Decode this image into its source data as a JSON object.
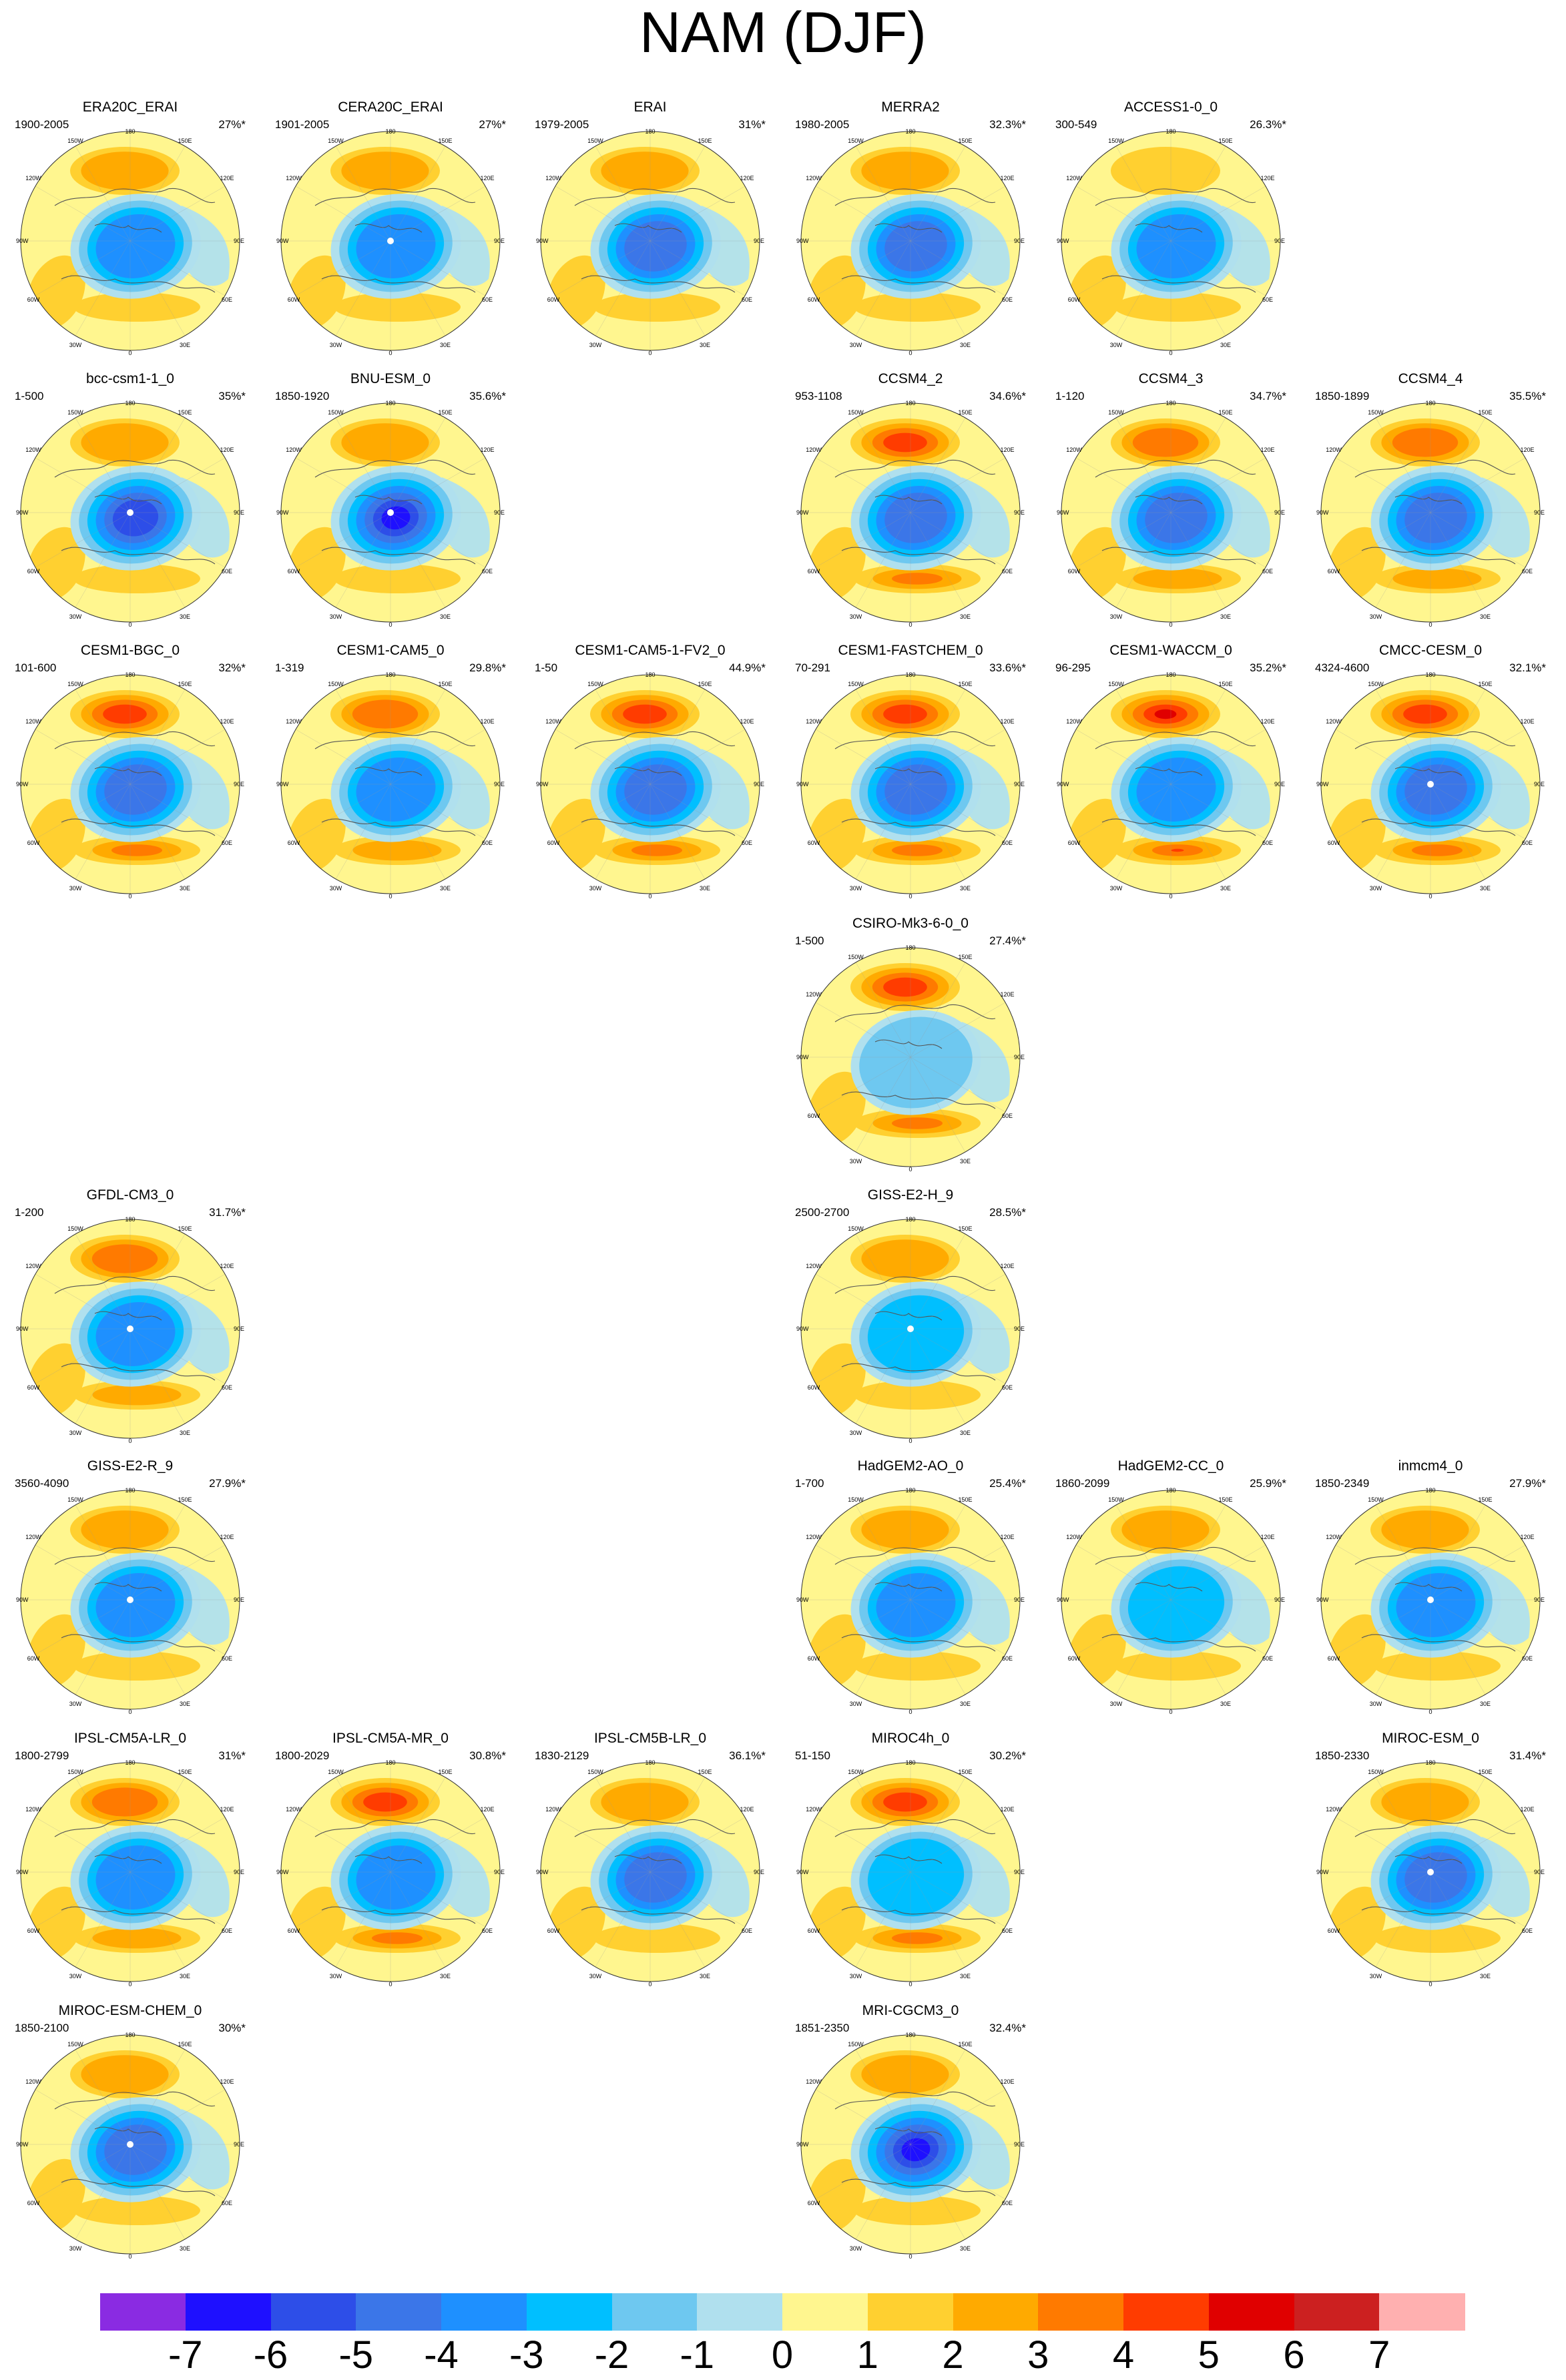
{
  "title": "NAM (DJF)",
  "panels": [
    {
      "name": "ERA20C_ERAI",
      "years": "1900-2005",
      "pct": "27%*",
      "row": 0,
      "col": 0,
      "pos": 2,
      "neg": 4,
      "pole": false,
      "purple": false
    },
    {
      "name": "CERA20C_ERAI",
      "years": "1901-2005",
      "pct": "27%*",
      "row": 0,
      "col": 1,
      "pos": 2,
      "neg": 4,
      "pole": true,
      "purple": false
    },
    {
      "name": "ERAI",
      "years": "1979-2005",
      "pct": "31%*",
      "row": 0,
      "col": 2,
      "pos": 2,
      "neg": 5,
      "pole": false,
      "purple": false
    },
    {
      "name": "MERRA2",
      "years": "1980-2005",
      "pct": "32.3%*",
      "row": 0,
      "col": 3,
      "pos": 2,
      "neg": 5,
      "pole": false,
      "purple": false
    },
    {
      "name": "ACCESS1-0_0",
      "years": "300-549",
      "pct": "26.3%*",
      "row": 0,
      "col": 4,
      "pos": 1,
      "neg": 4,
      "pole": false,
      "purple": false
    },
    {
      "name": "bcc-csm1-1_0",
      "years": "1-500",
      "pct": "35%*",
      "row": 1,
      "col": 0,
      "pos": 2,
      "neg": 6,
      "pole": true,
      "purple": false
    },
    {
      "name": "BNU-ESM_0",
      "years": "1850-1920",
      "pct": "35.6%*",
      "row": 1,
      "col": 1,
      "pos": 2,
      "neg": 6,
      "pole": true,
      "purple": true
    },
    {
      "name": "CCSM4_2",
      "years": "953-1108",
      "pct": "34.6%*",
      "row": 1,
      "col": 3,
      "pos": 4,
      "neg": 5,
      "pole": false,
      "purple": false
    },
    {
      "name": "CCSM4_3",
      "years": "1-120",
      "pct": "34.7%*",
      "row": 1,
      "col": 4,
      "pos": 3,
      "neg": 5,
      "pole": false,
      "purple": false
    },
    {
      "name": "CCSM4_4",
      "years": "1850-1899",
      "pct": "35.5%*",
      "row": 1,
      "col": 5,
      "pos": 3,
      "neg": 5,
      "pole": false,
      "purple": false
    },
    {
      "name": "CESM1-BGC_0",
      "years": "101-600",
      "pct": "32%*",
      "row": 2,
      "col": 0,
      "pos": 4,
      "neg": 5,
      "pole": false,
      "purple": false
    },
    {
      "name": "CESM1-CAM5_0",
      "years": "1-319",
      "pct": "29.8%*",
      "row": 2,
      "col": 1,
      "pos": 3,
      "neg": 4,
      "pole": false,
      "purple": false
    },
    {
      "name": "CESM1-CAM5-1-FV2_0",
      "years": "1-50",
      "pct": "44.9%*",
      "row": 2,
      "col": 2,
      "pos": 4,
      "neg": 5,
      "pole": false,
      "purple": false
    },
    {
      "name": "CESM1-FASTCHEM_0",
      "years": "70-291",
      "pct": "33.6%*",
      "row": 2,
      "col": 3,
      "pos": 4,
      "neg": 5,
      "pole": false,
      "purple": false
    },
    {
      "name": "CESM1-WACCM_0",
      "years": "96-295",
      "pct": "35.2%*",
      "row": 2,
      "col": 4,
      "pos": 5,
      "neg": 4,
      "pole": false,
      "purple": false
    },
    {
      "name": "CMCC-CESM_0",
      "years": "4324-4600",
      "pct": "32.1%*",
      "row": 2,
      "col": 5,
      "pos": 4,
      "neg": 5,
      "pole": true,
      "purple": false
    },
    {
      "name": "CSIRO-Mk3-6-0_0",
      "years": "1-500",
      "pct": "27.4%*",
      "row": 3,
      "col": 3,
      "pos": 4,
      "neg": 2,
      "pole": false,
      "purple": false
    },
    {
      "name": "GFDL-CM3_0",
      "years": "1-200",
      "pct": "31.7%*",
      "row": 4,
      "col": 0,
      "pos": 3,
      "neg": 4,
      "pole": true,
      "purple": false
    },
    {
      "name": "GISS-E2-H_9",
      "years": "2500-2700",
      "pct": "28.5%*",
      "row": 4,
      "col": 3,
      "pos": 2,
      "neg": 3,
      "pole": true,
      "purple": false
    },
    {
      "name": "GISS-E2-R_9",
      "years": "3560-4090",
      "pct": "27.9%*",
      "row": 5,
      "col": 0,
      "pos": 2,
      "neg": 4,
      "pole": true,
      "purple": false
    },
    {
      "name": "HadGEM2-AO_0",
      "years": "1-700",
      "pct": "25.4%*",
      "row": 5,
      "col": 3,
      "pos": 2,
      "neg": 4,
      "pole": false,
      "purple": false
    },
    {
      "name": "HadGEM2-CC_0",
      "years": "1860-2099",
      "pct": "25.9%*",
      "row": 5,
      "col": 4,
      "pos": 2,
      "neg": 3,
      "pole": false,
      "purple": false
    },
    {
      "name": "inmcm4_0",
      "years": "1850-2349",
      "pct": "27.9%*",
      "row": 5,
      "col": 5,
      "pos": 2,
      "neg": 4,
      "pole": true,
      "purple": false
    },
    {
      "name": "IPSL-CM5A-LR_0",
      "years": "1800-2799",
      "pct": "31%*",
      "row": 6,
      "col": 0,
      "pos": 3,
      "neg": 4,
      "pole": false,
      "purple": false
    },
    {
      "name": "IPSL-CM5A-MR_0",
      "years": "1800-2029",
      "pct": "30.8%*",
      "row": 6,
      "col": 1,
      "pos": 4,
      "neg": 4,
      "pole": false,
      "purple": false
    },
    {
      "name": "IPSL-CM5B-LR_0",
      "years": "1830-2129",
      "pct": "36.1%*",
      "row": 6,
      "col": 2,
      "pos": 2,
      "neg": 5,
      "pole": false,
      "purple": false
    },
    {
      "name": "MIROC4h_0",
      "years": "51-150",
      "pct": "30.2%*",
      "row": 6,
      "col": 3,
      "pos": 4,
      "neg": 3,
      "pole": false,
      "purple": false
    },
    {
      "name": "MIROC-ESM_0",
      "years": "1850-2330",
      "pct": "31.4%*",
      "row": 6,
      "col": 5,
      "pos": 2,
      "neg": 5,
      "pole": true,
      "purple": false
    },
    {
      "name": "MIROC-ESM-CHEM_0",
      "years": "1850-2100",
      "pct": "30%*",
      "row": 7,
      "col": 0,
      "pos": 2,
      "neg": 5,
      "pole": true,
      "purple": false
    },
    {
      "name": "MRI-CGCM3_0",
      "years": "1851-2350",
      "pct": "32.4%*",
      "row": 7,
      "col": 3,
      "pos": 2,
      "neg": 6,
      "pole": false,
      "purple": true
    }
  ],
  "map_labels": {
    "top": "180",
    "bottom": "0",
    "left": "90W",
    "right": "90E",
    "upper_left_1": "150W",
    "upper_left_2": "120W",
    "upper_right_1": "150E",
    "upper_right_2": "120E",
    "lower_left_1": "60W",
    "lower_left_2": "30W",
    "lower_right_1": "60E",
    "lower_right_2": "30E"
  },
  "colorbar": {
    "labels": [
      "-7",
      "-6",
      "-5",
      "-4",
      "-3",
      "-2",
      "-1",
      "0",
      "1",
      "2",
      "3",
      "4",
      "5",
      "6",
      "7"
    ],
    "colors": [
      "#8a2be2",
      "#1e10ff",
      "#2d4ee8",
      "#3b76e8",
      "#1e90ff",
      "#00bfff",
      "#6ec8f0",
      "#b0e0ee",
      "#fff68f",
      "#ffd030",
      "#ffaa00",
      "#ff7a00",
      "#ff3c00",
      "#e00000",
      "#cc2020",
      "#ffb0b0"
    ]
  }
}
